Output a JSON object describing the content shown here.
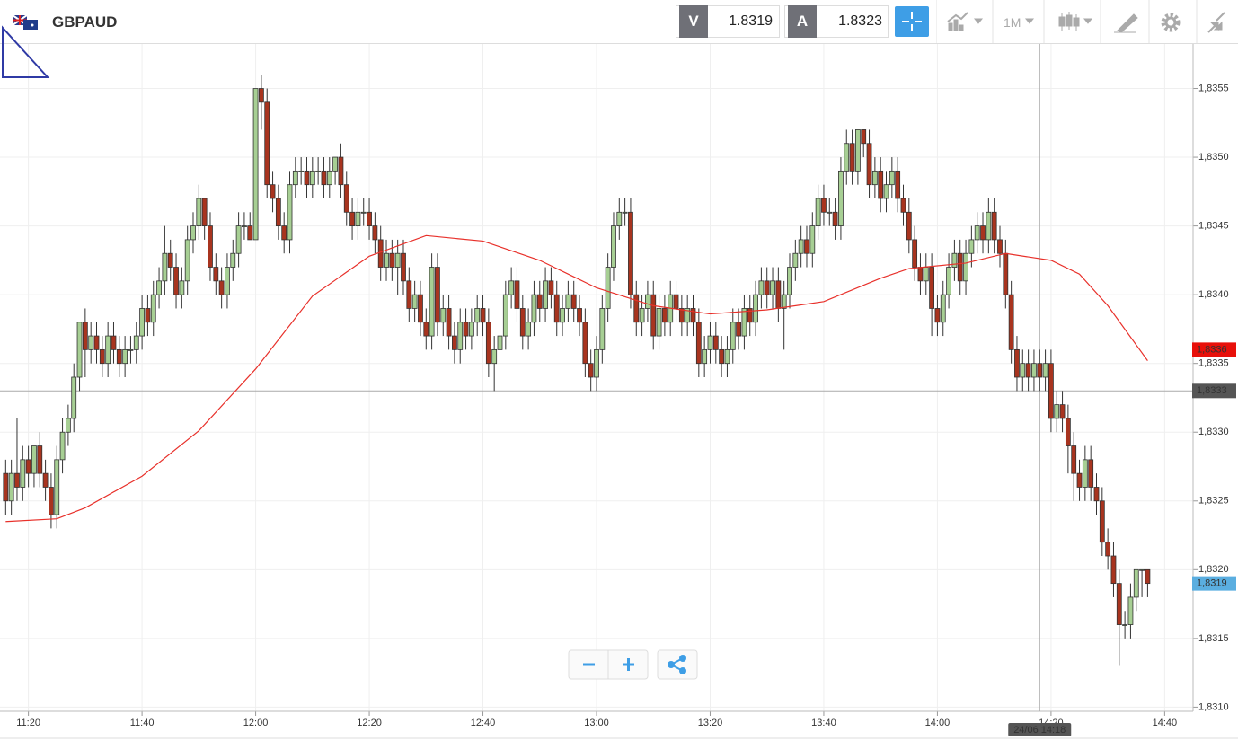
{
  "header": {
    "symbol": "GBPAUD",
    "bid_label": "V",
    "bid": 1.8319,
    "ask_label": "A",
    "ask": 1.8323,
    "timeframe": "1M"
  },
  "chart_data": {
    "type": "candlestick",
    "up_color": "#a7cf94",
    "down_color": "#a8341f",
    "edge_color": "#333333",
    "xlim": [
      "11:15",
      "14:45"
    ],
    "ylim": [
      1.83097,
      1.83583
    ],
    "xticks": [
      "11:20",
      "11:40",
      "12:00",
      "12:20",
      "12:40",
      "13:00",
      "13:20",
      "13:40",
      "14:00",
      "14:20",
      "14:40"
    ],
    "yticks": [
      {
        "value": 1.831,
        "label": "1,8310"
      },
      {
        "value": 1.8315,
        "label": "1,8315"
      },
      {
        "value": 1.832,
        "label": "1,8320"
      },
      {
        "value": 1.8325,
        "label": "1,8325"
      },
      {
        "value": 1.833,
        "label": "1,8330"
      },
      {
        "value": 1.8335,
        "label": "1,8335"
      },
      {
        "value": 1.834,
        "label": "1,8340"
      },
      {
        "value": 1.8345,
        "label": "1,8345"
      },
      {
        "value": 1.835,
        "label": "1,8350"
      },
      {
        "value": 1.8355,
        "label": "1,8355"
      }
    ],
    "grid": true,
    "x": [
      "11:16",
      "11:17",
      "11:18",
      "11:19",
      "11:20",
      "11:21",
      "11:22",
      "11:23",
      "11:24",
      "11:25",
      "11:26",
      "11:27",
      "11:28",
      "11:29",
      "11:30",
      "11:31",
      "11:32",
      "11:33",
      "11:34",
      "11:35",
      "11:36",
      "11:37",
      "11:38",
      "11:39",
      "11:40",
      "11:41",
      "11:42",
      "11:43",
      "11:44",
      "11:45",
      "11:46",
      "11:47",
      "11:48",
      "11:49",
      "11:50",
      "11:51",
      "11:52",
      "11:53",
      "11:54",
      "11:55",
      "11:56",
      "11:57",
      "11:58",
      "11:59",
      "12:00",
      "12:01",
      "12:02",
      "12:03",
      "12:04",
      "12:05",
      "12:06",
      "12:07",
      "12:08",
      "12:09",
      "12:10",
      "12:11",
      "12:12",
      "12:13",
      "12:14",
      "12:15",
      "12:16",
      "12:17",
      "12:18",
      "12:19",
      "12:20",
      "12:21",
      "12:22",
      "12:23",
      "12:24",
      "12:25",
      "12:26",
      "12:27",
      "12:28",
      "12:29",
      "12:30",
      "12:31",
      "12:32",
      "12:33",
      "12:34",
      "12:35",
      "12:36",
      "12:37",
      "12:38",
      "12:39",
      "12:40",
      "12:41",
      "12:42",
      "12:43",
      "12:44",
      "12:45",
      "12:46",
      "12:47",
      "12:48",
      "12:49",
      "12:50",
      "12:51",
      "12:52",
      "12:53",
      "12:54",
      "12:55",
      "12:56",
      "12:57",
      "12:58",
      "12:59",
      "13:00",
      "13:01",
      "13:02",
      "13:03",
      "13:04",
      "13:05",
      "13:06",
      "13:07",
      "13:08",
      "13:09",
      "13:10",
      "13:11",
      "13:12",
      "13:13",
      "13:14",
      "13:15",
      "13:16",
      "13:17",
      "13:18",
      "13:19",
      "13:20",
      "13:21",
      "13:22",
      "13:23",
      "13:24",
      "13:25",
      "13:26",
      "13:27",
      "13:28",
      "13:29",
      "13:30",
      "13:31",
      "13:32",
      "13:33",
      "13:34",
      "13:35",
      "13:36",
      "13:37",
      "13:38",
      "13:39",
      "13:40",
      "13:41",
      "13:42",
      "13:43",
      "13:44",
      "13:45",
      "13:46",
      "13:47",
      "13:48",
      "13:49",
      "13:50",
      "13:51",
      "13:52",
      "13:53",
      "13:54",
      "13:55",
      "13:56",
      "13:57",
      "13:58",
      "13:59",
      "14:00",
      "14:01",
      "14:02",
      "14:03",
      "14:04",
      "14:05",
      "14:06",
      "14:07",
      "14:08",
      "14:09",
      "14:10",
      "14:11",
      "14:12",
      "14:13",
      "14:14",
      "14:15",
      "14:16",
      "14:17",
      "14:18",
      "14:19",
      "14:20",
      "14:21",
      "14:22",
      "14:23",
      "14:24",
      "14:25",
      "14:26",
      "14:27",
      "14:28",
      "14:29",
      "14:30",
      "14:31",
      "14:32",
      "14:33",
      "14:34",
      "14:35",
      "14:36",
      "14:37"
    ],
    "open": [
      1.8327,
      1.8325,
      1.8327,
      1.8326,
      1.8328,
      1.8327,
      1.8329,
      1.8327,
      1.8326,
      1.8324,
      1.8328,
      1.833,
      1.8331,
      1.8334,
      1.8338,
      1.8336,
      1.8337,
      1.8336,
      1.8335,
      1.8337,
      1.8336,
      1.8335,
      1.8336,
      1.8336,
      1.8337,
      1.8339,
      1.8338,
      1.834,
      1.8341,
      1.8343,
      1.8342,
      1.834,
      1.8341,
      1.8344,
      1.8345,
      1.8347,
      1.8345,
      1.8342,
      1.8341,
      1.834,
      1.8342,
      1.8343,
      1.8345,
      1.8345,
      1.8344,
      1.8355,
      1.8354,
      1.8348,
      1.8347,
      1.8345,
      1.8344,
      1.8348,
      1.8349,
      1.8349,
      1.8348,
      1.8349,
      1.8349,
      1.8348,
      1.8349,
      1.835,
      1.8348,
      1.8346,
      1.8345,
      1.8346,
      1.8346,
      1.8345,
      1.8344,
      1.8342,
      1.8343,
      1.8342,
      1.8343,
      1.8341,
      1.8339,
      1.834,
      1.8338,
      1.8337,
      1.8342,
      1.8338,
      1.8339,
      1.8337,
      1.8336,
      1.8338,
      1.8337,
      1.8338,
      1.8339,
      1.8338,
      1.8335,
      1.8336,
      1.8337,
      1.834,
      1.8341,
      1.8339,
      1.8337,
      1.8338,
      1.834,
      1.8339,
      1.8341,
      1.834,
      1.8338,
      1.8339,
      1.834,
      1.8339,
      1.8338,
      1.8335,
      1.8334,
      1.8336,
      1.8339,
      1.8342,
      1.8345,
      1.8346,
      1.8346,
      1.834,
      1.8338,
      1.8339,
      1.834,
      1.8337,
      1.8339,
      1.8338,
      1.834,
      1.8339,
      1.8338,
      1.8339,
      1.8338,
      1.8335,
      1.8336,
      1.8337,
      1.8336,
      1.8335,
      1.8336,
      1.8338,
      1.8337,
      1.8339,
      1.8338,
      1.834,
      1.8341,
      1.834,
      1.8341,
      1.8339,
      1.834,
      1.8342,
      1.8343,
      1.8344,
      1.8343,
      1.8345,
      1.8347,
      1.8346,
      1.8346,
      1.8345,
      1.8349,
      1.8351,
      1.8349,
      1.8352,
      1.8351,
      1.8348,
      1.8349,
      1.8347,
      1.8348,
      1.8349,
      1.8347,
      1.8346,
      1.8344,
      1.8342,
      1.8341,
      1.8342,
      1.8339,
      1.8338,
      1.834,
      1.8342,
      1.8343,
      1.8341,
      1.8343,
      1.8344,
      1.8345,
      1.8344,
      1.8346,
      1.8344,
      1.8343,
      1.834,
      1.8336,
      1.8334,
      1.8335,
      1.8334,
      1.8335,
      1.8334,
      1.8335,
      1.8331,
      1.8332,
      1.8331,
      1.8329,
      1.8327,
      1.8326,
      1.8328,
      1.8326,
      1.8325,
      1.8322,
      1.8321,
      1.8319,
      1.8316,
      1.8316,
      1.8318,
      1.832,
      1.832
    ],
    "high": [
      1.8328,
      1.8328,
      1.8331,
      1.8329,
      1.8329,
      1.8329,
      1.833,
      1.8328,
      1.8327,
      1.8329,
      1.8331,
      1.8332,
      1.8335,
      1.8338,
      1.8339,
      1.8338,
      1.8338,
      1.8337,
      1.8338,
      1.8338,
      1.8337,
      1.8337,
      1.8337,
      1.8338,
      1.834,
      1.834,
      1.8341,
      1.8342,
      1.8345,
      1.8344,
      1.8343,
      1.8342,
      1.8345,
      1.8346,
      1.8348,
      1.8347,
      1.8346,
      1.8343,
      1.8342,
      1.8343,
      1.8344,
      1.8346,
      1.8346,
      1.8346,
      1.8355,
      1.8356,
      1.8355,
      1.8349,
      1.8348,
      1.8346,
      1.8349,
      1.835,
      1.835,
      1.835,
      1.835,
      1.835,
      1.835,
      1.835,
      1.835,
      1.8351,
      1.8349,
      1.8347,
      1.8347,
      1.8347,
      1.8347,
      1.8346,
      1.8345,
      1.8344,
      1.8344,
      1.8344,
      1.8344,
      1.8342,
      1.8341,
      1.8341,
      1.8339,
      1.8343,
      1.8343,
      1.834,
      1.834,
      1.8338,
      1.8339,
      1.8339,
      1.8339,
      1.834,
      1.834,
      1.8339,
      1.8337,
      1.8338,
      1.8341,
      1.8342,
      1.8342,
      1.834,
      1.8339,
      1.8341,
      1.8341,
      1.8342,
      1.8342,
      1.8341,
      1.834,
      1.8341,
      1.8341,
      1.834,
      1.8339,
      1.8336,
      1.8337,
      1.834,
      1.8343,
      1.8346,
      1.8347,
      1.8347,
      1.8347,
      1.8341,
      1.834,
      1.8341,
      1.8341,
      1.834,
      1.834,
      1.8341,
      1.8341,
      1.834,
      1.834,
      1.834,
      1.8339,
      1.8337,
      1.8338,
      1.8338,
      1.8337,
      1.8337,
      1.8339,
      1.8339,
      1.834,
      1.834,
      1.8341,
      1.8342,
      1.8342,
      1.8342,
      1.8342,
      1.8341,
      1.8343,
      1.8344,
      1.8345,
      1.8345,
      1.8346,
      1.8348,
      1.8348,
      1.8347,
      1.8347,
      1.835,
      1.8352,
      1.8352,
      1.8352,
      1.8352,
      1.8352,
      1.835,
      1.835,
      1.8349,
      1.835,
      1.835,
      1.8348,
      1.8347,
      1.8345,
      1.8343,
      1.8343,
      1.8343,
      1.834,
      1.8341,
      1.8343,
      1.8344,
      1.8344,
      1.8344,
      1.8345,
      1.8346,
      1.8346,
      1.8347,
      1.8347,
      1.8345,
      1.8344,
      1.8341,
      1.8337,
      1.8336,
      1.8336,
      1.8336,
      1.8336,
      1.8336,
      1.8336,
      1.8333,
      1.8333,
      1.8332,
      1.833,
      1.8328,
      1.8329,
      1.8329,
      1.8327,
      1.8326,
      1.8323,
      1.8322,
      1.832,
      1.8317,
      1.8319,
      1.832,
      1.832,
      1.832
    ],
    "low": [
      1.8324,
      1.8324,
      1.8325,
      1.8325,
      1.8326,
      1.8326,
      1.8326,
      1.8325,
      1.8323,
      1.8323,
      1.8327,
      1.8329,
      1.833,
      1.8333,
      1.8334,
      1.8335,
      1.8335,
      1.8334,
      1.8334,
      1.8335,
      1.8334,
      1.8334,
      1.8335,
      1.8335,
      1.8336,
      1.8337,
      1.8337,
      1.8339,
      1.834,
      1.8341,
      1.8339,
      1.8339,
      1.834,
      1.8343,
      1.8344,
      1.8344,
      1.8341,
      1.834,
      1.8339,
      1.8339,
      1.8341,
      1.8342,
      1.8344,
      1.8344,
      1.8344,
      1.8352,
      1.8347,
      1.8346,
      1.8344,
      1.8343,
      1.8343,
      1.8347,
      1.8348,
      1.8347,
      1.8347,
      1.8348,
      1.8347,
      1.8347,
      1.8348,
      1.8347,
      1.8345,
      1.8344,
      1.8344,
      1.8345,
      1.8344,
      1.8343,
      1.8341,
      1.8341,
      1.8341,
      1.834,
      1.834,
      1.8338,
      1.8338,
      1.8337,
      1.8336,
      1.8336,
      1.8337,
      1.8337,
      1.8336,
      1.8335,
      1.8335,
      1.8336,
      1.8336,
      1.8337,
      1.8337,
      1.8334,
      1.8333,
      1.8335,
      1.8336,
      1.8339,
      1.8338,
      1.8336,
      1.8336,
      1.8337,
      1.8338,
      1.8338,
      1.8339,
      1.8337,
      1.8337,
      1.8338,
      1.8338,
      1.8337,
      1.8334,
      1.8333,
      1.8333,
      1.8335,
      1.8338,
      1.8341,
      1.8344,
      1.8345,
      1.8339,
      1.8337,
      1.8337,
      1.8338,
      1.8336,
      1.8336,
      1.8337,
      1.8337,
      1.8338,
      1.8337,
      1.8337,
      1.8337,
      1.8334,
      1.8334,
      1.8335,
      1.8335,
      1.8334,
      1.8334,
      1.8335,
      1.8336,
      1.8336,
      1.8337,
      1.8337,
      1.8339,
      1.8339,
      1.8339,
      1.8338,
      1.8336,
      1.8339,
      1.8341,
      1.8342,
      1.8342,
      1.8342,
      1.8344,
      1.8345,
      1.8345,
      1.8344,
      1.8344,
      1.8348,
      1.8348,
      1.8348,
      1.835,
      1.8347,
      1.8347,
      1.8346,
      1.8346,
      1.8347,
      1.8346,
      1.8345,
      1.8343,
      1.8341,
      1.834,
      1.834,
      1.8337,
      1.8337,
      1.8337,
      1.8339,
      1.8341,
      1.834,
      1.834,
      1.8342,
      1.8343,
      1.8343,
      1.8343,
      1.8343,
      1.8342,
      1.8339,
      1.8335,
      1.8333,
      1.8333,
      1.8333,
      1.8333,
      1.8333,
      1.8333,
      1.833,
      1.833,
      1.833,
      1.8327,
      1.8325,
      1.8325,
      1.8325,
      1.8325,
      1.8324,
      1.8321,
      1.832,
      1.8318,
      1.8313,
      1.8315,
      1.8315,
      1.8317,
      1.8318,
      1.8318
    ],
    "close": [
      1.8325,
      1.8327,
      1.8326,
      1.8328,
      1.8327,
      1.8329,
      1.8327,
      1.8326,
      1.8324,
      1.8328,
      1.833,
      1.8331,
      1.8334,
      1.8338,
      1.8336,
      1.8337,
      1.8336,
      1.8335,
      1.8337,
      1.8336,
      1.8335,
      1.8336,
      1.8336,
      1.8337,
      1.8339,
      1.8338,
      1.834,
      1.8341,
      1.8343,
      1.8342,
      1.834,
      1.8341,
      1.8344,
      1.8345,
      1.8347,
      1.8345,
      1.8342,
      1.8341,
      1.834,
      1.8342,
      1.8343,
      1.8345,
      1.8345,
      1.8344,
      1.8355,
      1.8354,
      1.8348,
      1.8347,
      1.8345,
      1.8344,
      1.8348,
      1.8349,
      1.8349,
      1.8348,
      1.8349,
      1.8349,
      1.8348,
      1.8349,
      1.835,
      1.8348,
      1.8346,
      1.8345,
      1.8346,
      1.8346,
      1.8345,
      1.8344,
      1.8342,
      1.8343,
      1.8342,
      1.8343,
      1.8341,
      1.8339,
      1.834,
      1.8338,
      1.8337,
      1.8342,
      1.8338,
      1.8339,
      1.8337,
      1.8336,
      1.8338,
      1.8337,
      1.8338,
      1.8339,
      1.8338,
      1.8335,
      1.8336,
      1.8337,
      1.834,
      1.8341,
      1.8339,
      1.8337,
      1.8338,
      1.834,
      1.8339,
      1.8341,
      1.834,
      1.8338,
      1.8339,
      1.834,
      1.8339,
      1.8338,
      1.8335,
      1.8334,
      1.8336,
      1.8339,
      1.8342,
      1.8345,
      1.8346,
      1.8346,
      1.834,
      1.8338,
      1.8339,
      1.834,
      1.8337,
      1.8339,
      1.8338,
      1.834,
      1.8339,
      1.8338,
      1.8339,
      1.8338,
      1.8335,
      1.8336,
      1.8337,
      1.8336,
      1.8335,
      1.8336,
      1.8338,
      1.8337,
      1.8339,
      1.8338,
      1.834,
      1.8341,
      1.834,
      1.8341,
      1.8339,
      1.834,
      1.8342,
      1.8343,
      1.8344,
      1.8343,
      1.8345,
      1.8347,
      1.8346,
      1.8346,
      1.8345,
      1.8349,
      1.8351,
      1.8349,
      1.8352,
      1.8351,
      1.8348,
      1.8349,
      1.8347,
      1.8348,
      1.8349,
      1.8347,
      1.8346,
      1.8344,
      1.8342,
      1.8341,
      1.8342,
      1.8339,
      1.8338,
      1.834,
      1.8342,
      1.8343,
      1.8341,
      1.8343,
      1.8344,
      1.8345,
      1.8344,
      1.8346,
      1.8344,
      1.8343,
      1.834,
      1.8336,
      1.8334,
      1.8335,
      1.8334,
      1.8335,
      1.8334,
      1.8335,
      1.8331,
      1.8332,
      1.8331,
      1.8329,
      1.8327,
      1.8326,
      1.8328,
      1.8326,
      1.8325,
      1.8322,
      1.8321,
      1.8319,
      1.8316,
      1.8316,
      1.8318,
      1.832,
      1.832,
      1.8319
    ],
    "moving_average": {
      "color": "#e8302a",
      "x": [
        "11:16",
        "11:25",
        "11:30",
        "11:40",
        "11:50",
        "12:00",
        "12:10",
        "12:20",
        "12:30",
        "12:40",
        "12:50",
        "13:00",
        "13:10",
        "13:20",
        "13:30",
        "13:40",
        "13:50",
        "13:55",
        "14:05",
        "14:12",
        "14:20",
        "14:25",
        "14:30",
        "14:37"
      ],
      "values": [
        1.83235,
        1.83237,
        1.83245,
        1.83268,
        1.83301,
        1.83346,
        1.83399,
        1.83428,
        1.83443,
        1.83439,
        1.83425,
        1.83405,
        1.83392,
        1.83386,
        1.83389,
        1.83395,
        1.83412,
        1.83419,
        1.83423,
        1.8343,
        1.83425,
        1.83415,
        1.83392,
        1.83352
      ]
    },
    "price_markers": [
      {
        "value": 1.8336,
        "label": "1,8336",
        "color": "#e8100a"
      },
      {
        "value": 1.8319,
        "label": "1,8319",
        "color": "#5aaee0"
      }
    ],
    "crosshair": {
      "time": "14:18",
      "time_label": "24/06 14:18",
      "price": 1.8333,
      "price_label": "1,8333",
      "color": "#555555"
    }
  }
}
